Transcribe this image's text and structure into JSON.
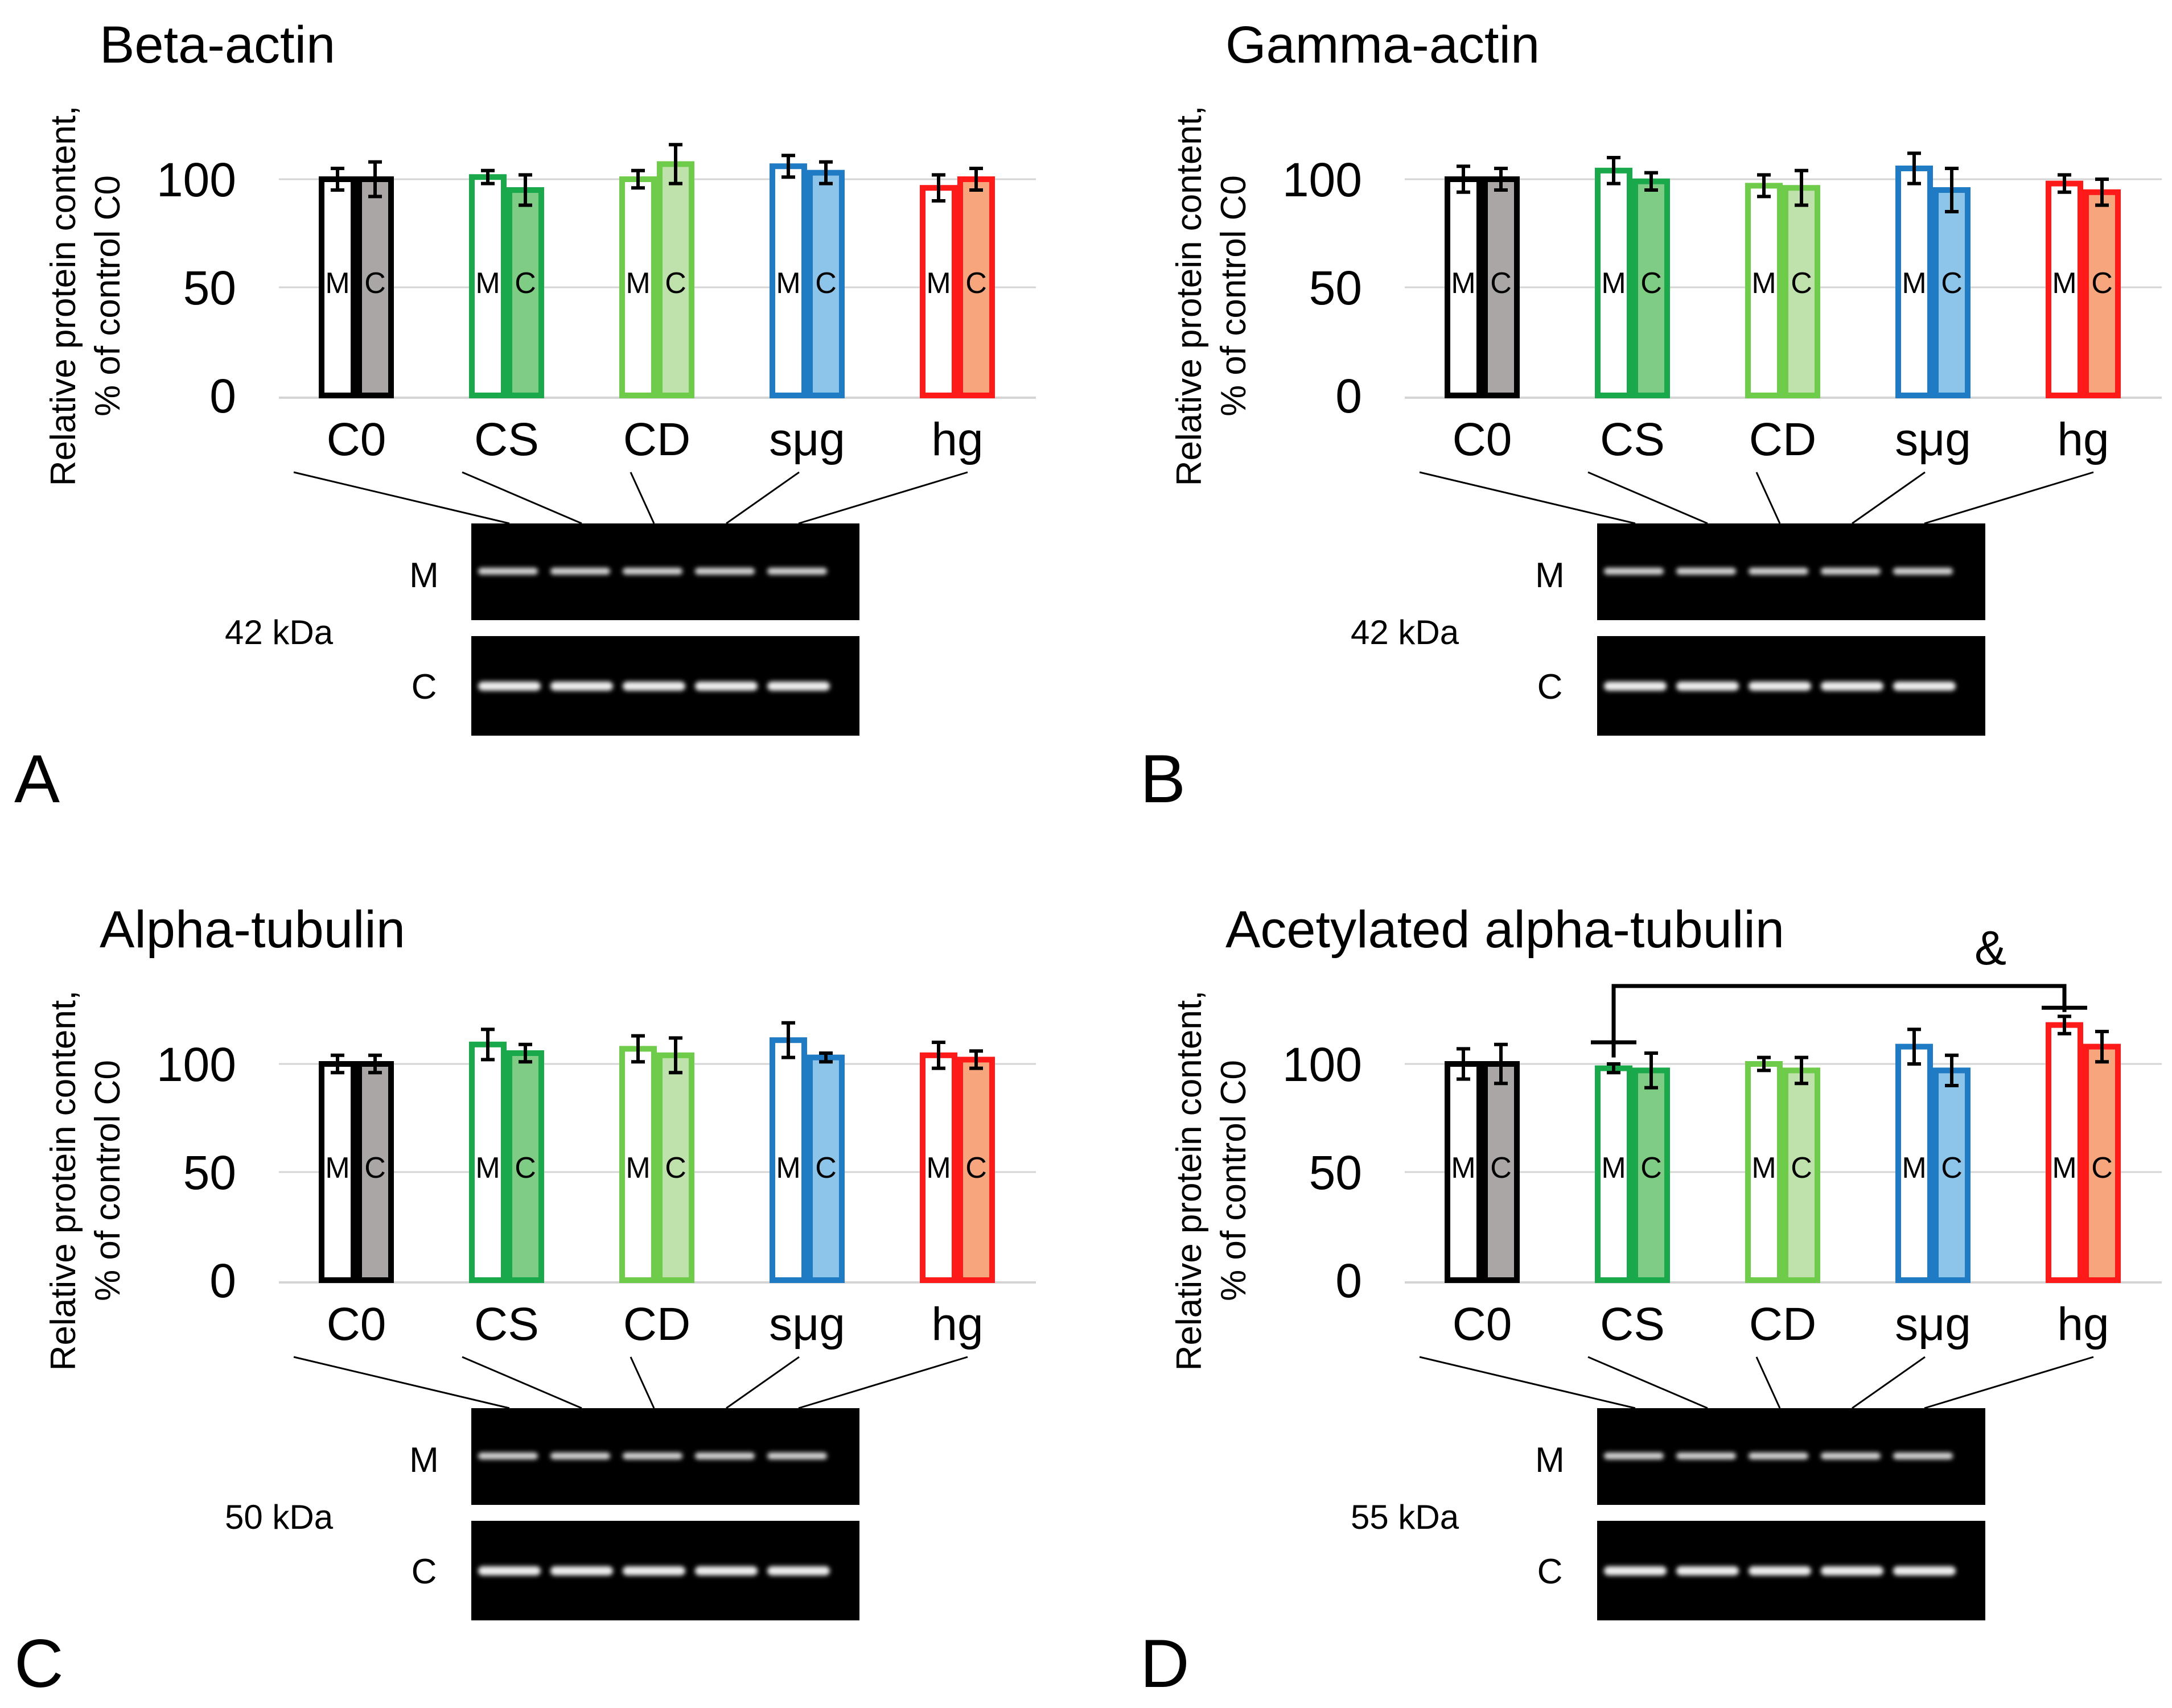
{
  "figure": {
    "y_axis_label_line1": "Relative protein content,",
    "y_axis_label_line2": "% of control C0",
    "bar_inner_labels": [
      "M",
      "C"
    ],
    "blot_row_labels": [
      "M",
      "C"
    ]
  },
  "colors": {
    "C0": {
      "stroke": "#000000",
      "fill_C": "#aaa6a6"
    },
    "CS": {
      "stroke": "#19a84a",
      "fill_C": "#7fcc84"
    },
    "CD": {
      "stroke": "#6fcb4a",
      "fill_C": "#bfe2ad"
    },
    "sμg": {
      "stroke": "#1e7bc4",
      "fill_C": "#8dc4ea"
    },
    "hg": {
      "stroke": "#ff1a1a",
      "fill_C": "#f7a57c"
    }
  },
  "chart_data": [
    {
      "type": "bar",
      "panel_letter": "A",
      "title": "Beta-actin",
      "categories": [
        "C0",
        "CS",
        "CD",
        "sμg",
        "hg"
      ],
      "series": [
        {
          "name": "M",
          "values": [
            100,
            101,
            100,
            106,
            96
          ],
          "errors": [
            5,
            3,
            4,
            5,
            6
          ]
        },
        {
          "name": "C",
          "values": [
            100,
            95,
            107,
            103,
            100
          ],
          "errors": [
            8,
            7,
            9,
            5,
            5
          ]
        }
      ],
      "ylim": [
        0,
        100
      ],
      "yticks": [
        0,
        50,
        100
      ],
      "grid": true,
      "kda": "42 kDa",
      "annotation": null
    },
    {
      "type": "bar",
      "panel_letter": "B",
      "title": "Gamma-actin",
      "categories": [
        "C0",
        "CS",
        "CD",
        "sμg",
        "hg"
      ],
      "series": [
        {
          "name": "M",
          "values": [
            100,
            104,
            97,
            105,
            98
          ],
          "errors": [
            6,
            6,
            5,
            7,
            4
          ]
        },
        {
          "name": "C",
          "values": [
            100,
            99,
            96,
            95,
            94
          ],
          "errors": [
            5,
            4,
            8,
            10,
            6
          ]
        }
      ],
      "ylim": [
        0,
        100
      ],
      "yticks": [
        0,
        50,
        100
      ],
      "grid": true,
      "kda": "42 kDa",
      "annotation": null
    },
    {
      "type": "bar",
      "panel_letter": "C",
      "title": "Alpha-tubulin",
      "categories": [
        "C0",
        "CS",
        "CD",
        "sμg",
        "hg"
      ],
      "series": [
        {
          "name": "M",
          "values": [
            100,
            109,
            107,
            111,
            104
          ],
          "errors": [
            4,
            7,
            6,
            8,
            6
          ]
        },
        {
          "name": "C",
          "values": [
            100,
            105,
            104,
            103,
            102
          ],
          "errors": [
            4,
            4,
            8,
            2,
            4
          ]
        }
      ],
      "ylim": [
        0,
        100
      ],
      "yticks": [
        0,
        50,
        100
      ],
      "grid": true,
      "kda": "50 kDa",
      "annotation": null
    },
    {
      "type": "bar",
      "panel_letter": "D",
      "title": "Acetylated alpha-tubulin",
      "categories": [
        "C0",
        "CS",
        "CD",
        "sμg",
        "hg"
      ],
      "series": [
        {
          "name": "M",
          "values": [
            100,
            98,
            100,
            108,
            118
          ],
          "errors": [
            7,
            2,
            3,
            8,
            4
          ]
        },
        {
          "name": "C",
          "values": [
            100,
            97,
            97,
            97,
            108
          ],
          "errors": [
            9,
            8,
            6,
            7,
            7
          ]
        }
      ],
      "ylim": [
        0,
        100
      ],
      "yticks": [
        0,
        50,
        100
      ],
      "grid": true,
      "kda": "55 kDa",
      "annotation": {
        "symbol": "&",
        "from": "CS",
        "to": "hg"
      }
    }
  ]
}
